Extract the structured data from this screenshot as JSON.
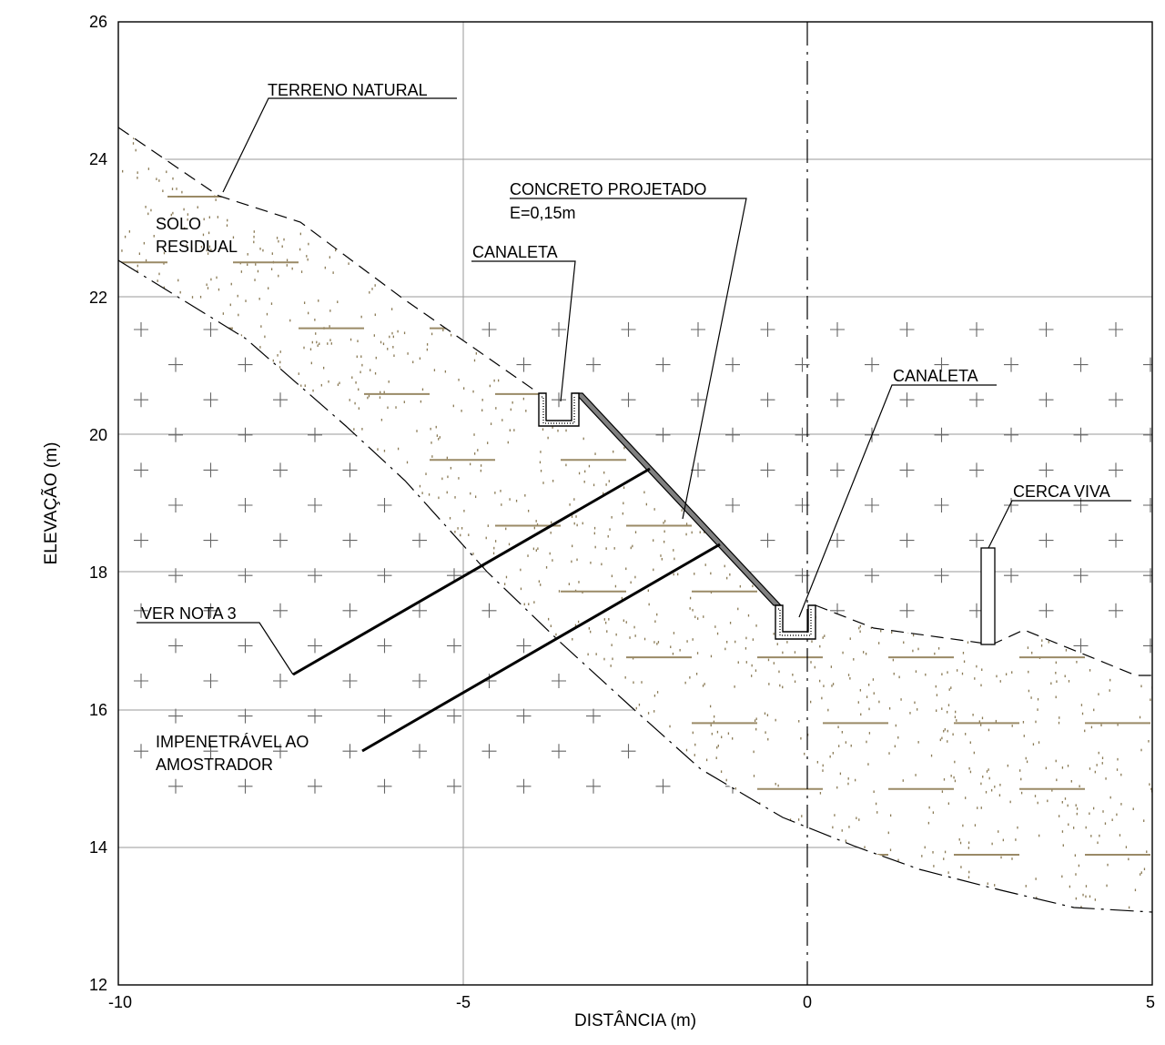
{
  "axes": {
    "x_title": "DISTÂNCIA (m)",
    "y_title": "ELEVAÇÃO (m)",
    "x_ticks": [
      "-10",
      "-5",
      "0",
      "5"
    ],
    "y_ticks": [
      "26",
      "24",
      "22",
      "20",
      "18",
      "16",
      "14",
      "12"
    ],
    "x_range": [
      -10,
      5
    ],
    "y_range": [
      12,
      26
    ]
  },
  "labels": {
    "terreno_natural": "TERRENO NATURAL",
    "solo_line1": "SOLO",
    "solo_line2": "RESIDUAL",
    "concreto_line1": "CONCRETO PROJETADO",
    "concreto_line2": "E=0,15m",
    "canaleta_top": "CANALETA",
    "canaleta_bottom": "CANALETA",
    "cerca_viva": "CERCA VIVA",
    "ver_nota": "VER NOTA 3",
    "impenetravel_line1": "IMPENETRÁVEL AO",
    "impenetravel_line2": "AMOSTRADOR"
  },
  "colors": {
    "soil_dash": "#9a8a66",
    "soil_dot": "#8a7a55",
    "grid": "#9a9a9a",
    "concrete": "#808080",
    "rock_cross": "#666666"
  }
}
